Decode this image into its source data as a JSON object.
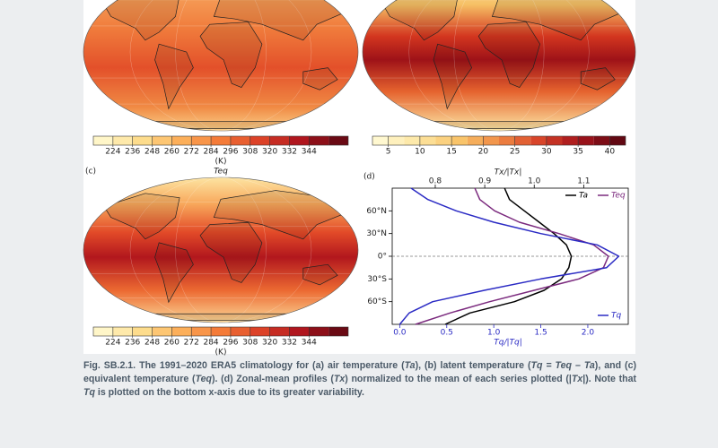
{
  "figure": {
    "panels": [
      {
        "colorbar": {
          "ticks": [
            224,
            236,
            248,
            260,
            272,
            284,
            296,
            308,
            320,
            332,
            344
          ],
          "unit": "(K)"
        }
      },
      {
        "colorbar": {
          "ticks": [
            5,
            10,
            15,
            20,
            25,
            30,
            35,
            40
          ]
        }
      },
      {
        "label": "(c)",
        "title": "Teq",
        "colorbar": {
          "ticks": [
            224,
            236,
            248,
            260,
            272,
            284,
            296,
            308,
            320,
            332,
            344
          ],
          "unit": "(K)"
        }
      }
    ]
  },
  "chart_data": {
    "type": "line",
    "label": "(d)",
    "x2label": "Tx/|Tx|",
    "xlabel": "Tq/|Tq|",
    "y": [
      90,
      75,
      60,
      45,
      30,
      15,
      0,
      -15,
      -30,
      -45,
      -60,
      -75,
      -90
    ],
    "ylim": [
      -90,
      90
    ],
    "yticks": [
      {
        "value": 60,
        "label": "60°N"
      },
      {
        "value": 30,
        "label": "30°N"
      },
      {
        "value": 0,
        "label": "0°"
      },
      {
        "value": -30,
        "label": "30°S"
      },
      {
        "value": -60,
        "label": "60°S"
      }
    ],
    "xlim": [
      -0.08,
      2.43
    ],
    "xticks": [
      {
        "value": 0,
        "label": "0.0"
      },
      0.5,
      {
        "value": 1,
        "label": "1.0"
      },
      1.5,
      {
        "value": 2,
        "label": "2.0"
      }
    ],
    "x2lim": [
      0.713,
      1.19
    ],
    "x2ticks": [
      0.8,
      0.9,
      {
        "value": 1,
        "label": "1.0"
      },
      1.1
    ],
    "reference_line": 0,
    "series": [
      {
        "name": "Ta",
        "color": "#000000",
        "axis": "x2",
        "values": [
          0.94,
          0.95,
          0.98,
          1.01,
          1.04,
          1.065,
          1.075,
          1.07,
          1.055,
          1.02,
          0.96,
          0.87,
          0.82
        ]
      },
      {
        "name": "Teq",
        "color": "#7b2a7e",
        "axis": "x2",
        "values": [
          0.88,
          0.89,
          0.92,
          0.97,
          1.05,
          1.12,
          1.15,
          1.14,
          1.09,
          1.0,
          0.91,
          0.83,
          0.76
        ]
      },
      {
        "name": "Tq",
        "color": "#2b2bc4",
        "values": [
          0.12,
          0.3,
          0.6,
          1.0,
          1.5,
          2.1,
          2.33,
          2.2,
          1.5,
          0.9,
          0.35,
          0.1,
          0.0
        ]
      }
    ]
  },
  "caption": [
    {
      "text": "Fig. SB.2.1. The 1991–2020 ERA5 climatology for (a) air temperature (",
      "italic": false
    },
    {
      "text": "Ta",
      "italic": true
    },
    {
      "text": "), (b) latent temperature (",
      "italic": false
    },
    {
      "text": "Tq = Teq – Ta",
      "italic": true
    },
    {
      "text": "), and (c) equivalent temperature (",
      "italic": false
    },
    {
      "text": "Teq",
      "italic": true
    },
    {
      "text": "). (d) Zonal-mean profiles (",
      "italic": false
    },
    {
      "text": "Tx",
      "italic": true
    },
    {
      "text": ") normalized to the mean of each series plotted (|",
      "italic": false
    },
    {
      "text": "Tx",
      "italic": true
    },
    {
      "text": "|). Note that ",
      "italic": false
    },
    {
      "text": "Tq",
      "italic": true
    },
    {
      "text": " is plotted on the bottom x-axis due to its greater variability.",
      "italic": false
    }
  ]
}
